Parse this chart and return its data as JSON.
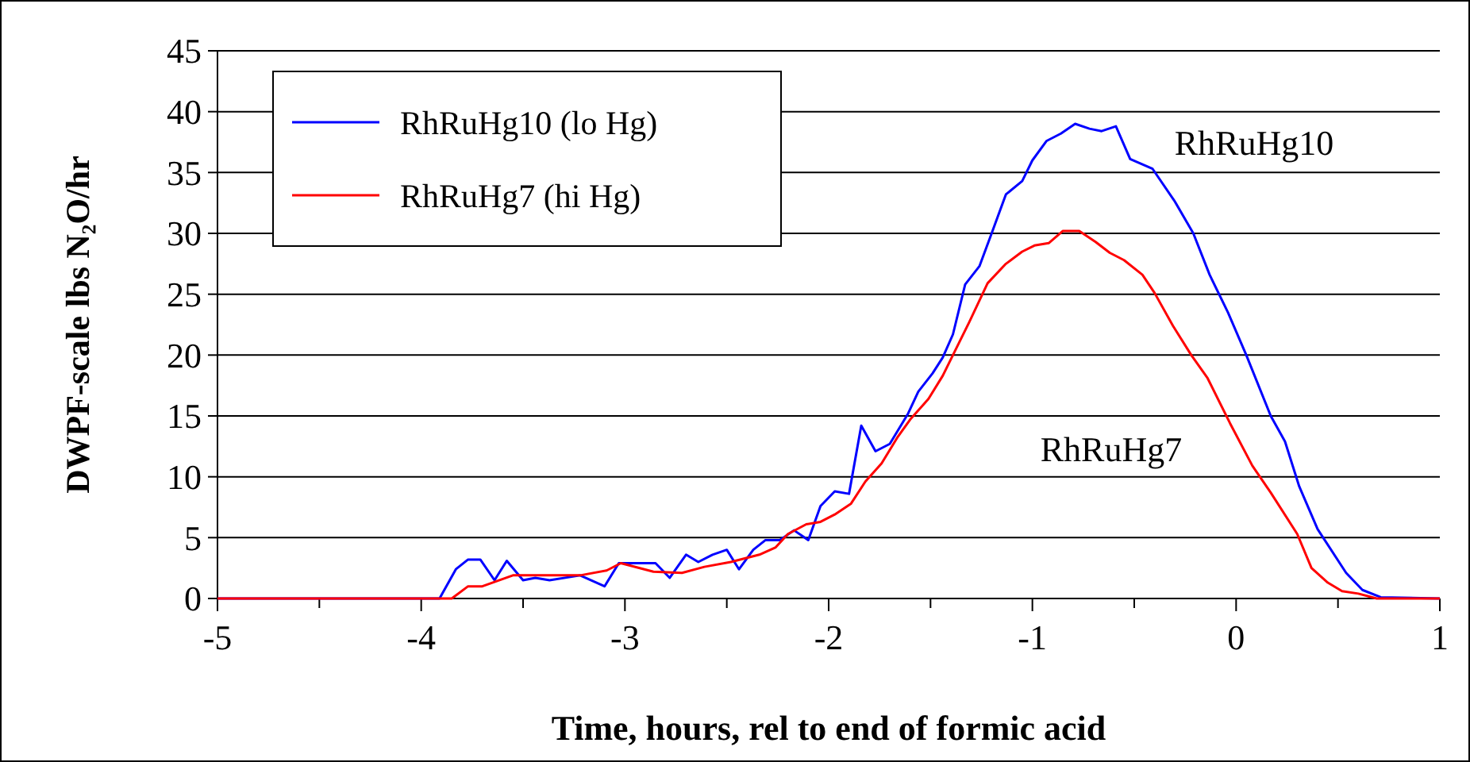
{
  "chart_data": {
    "type": "line",
    "xlabel": "Time, hours, rel to end of formic acid",
    "ylabel": "DWPF-scale lbs N₂O/hr",
    "xlim": [
      -5,
      1
    ],
    "ylim": [
      0,
      45
    ],
    "xticks": [
      -5,
      {
        "value": -4.5,
        "label": null
      },
      -4,
      {
        "value": -3.5,
        "label": null
      },
      -3,
      {
        "value": -2.5,
        "label": null
      },
      -2,
      {
        "value": -1.5,
        "label": null
      },
      -1,
      {
        "value": -0.5,
        "label": null
      },
      0,
      {
        "value": 0.5,
        "label": null
      },
      1
    ],
    "yticks": [
      0,
      5,
      10,
      15,
      20,
      25,
      30,
      35,
      40,
      45
    ],
    "grid": "y",
    "legend": "top left",
    "marker": "none",
    "line_style": "solid",
    "series": [
      {
        "name": "RhRuHg10 (lo Hg)",
        "color": "#0000ff",
        "x": [
          -5,
          -3.91,
          -3.83,
          -3.77,
          -3.71,
          -3.64,
          -3.58,
          -3.5,
          -3.44,
          -3.37,
          -3.22,
          -3.1,
          -3.03,
          -2.85,
          -2.78,
          -2.7,
          -2.64,
          -2.57,
          -2.5,
          -2.44,
          -2.37,
          -2.31,
          -2.24,
          -2.17,
          -2.1,
          -2.04,
          -1.97,
          -1.9,
          -1.84,
          -1.77,
          -1.7,
          -1.61,
          -1.56,
          -1.49,
          -1.44,
          -1.39,
          -1.33,
          -1.26,
          -1.2,
          -1.13,
          -1.05,
          -1,
          -0.93,
          -0.86,
          -0.79,
          -0.72,
          -0.66,
          -0.59,
          -0.52,
          -0.41,
          -0.3,
          -0.21,
          -0.13,
          -0.04,
          0.05,
          0.17,
          0.24,
          0.31,
          0.4,
          0.54,
          0.62,
          0.71,
          1
        ],
        "values": [
          0,
          0,
          2.4,
          3.2,
          3.2,
          1.5,
          3.1,
          1.5,
          1.7,
          1.5,
          1.9,
          1,
          2.9,
          2.9,
          1.7,
          3.6,
          3,
          3.6,
          4,
          2.4,
          4,
          4.8,
          4.8,
          5.6,
          4.8,
          7.6,
          8.8,
          8.6,
          14.2,
          12.1,
          12.7,
          15.2,
          17,
          18.5,
          19.8,
          21.7,
          25.8,
          27.3,
          30,
          33.2,
          34.3,
          36,
          37.6,
          38.2,
          39,
          38.6,
          38.4,
          38.8,
          36.1,
          35.3,
          32.6,
          30,
          26.6,
          23.5,
          20,
          15,
          12.9,
          9.2,
          5.7,
          2.1,
          0.7,
          0.1,
          0
        ]
      },
      {
        "name": "RhRuHg7 (hi Hg)",
        "color": "#ff0000",
        "x": [
          -5,
          -3.85,
          -3.77,
          -3.7,
          -3.55,
          -3.22,
          -3.09,
          -3.02,
          -2.86,
          -2.72,
          -2.61,
          -2.48,
          -2.34,
          -2.26,
          -2.2,
          -2.11,
          -2.04,
          -1.97,
          -1.89,
          -1.82,
          -1.74,
          -1.66,
          -1.6,
          -1.51,
          -1.44,
          -1.39,
          -1.31,
          -1.22,
          -1.13,
          -1.05,
          -0.99,
          -0.92,
          -0.85,
          -0.77,
          -0.69,
          -0.62,
          -0.55,
          -0.46,
          -0.4,
          -0.31,
          -0.22,
          -0.14,
          -0.03,
          0.08,
          0.17,
          0.3,
          0.37,
          0.45,
          0.52,
          0.6,
          0.69,
          1
        ],
        "values": [
          0,
          0,
          1,
          1,
          1.9,
          1.9,
          2.3,
          2.9,
          2.2,
          2.1,
          2.6,
          3,
          3.6,
          4.2,
          5.3,
          6.1,
          6.3,
          6.9,
          7.8,
          9.6,
          11.1,
          13.3,
          14.7,
          16.4,
          18.3,
          20,
          22.7,
          25.9,
          27.5,
          28.5,
          29,
          29.2,
          30.2,
          30.2,
          29.3,
          28.4,
          27.8,
          26.6,
          25.1,
          22.4,
          20,
          18.1,
          14.4,
          10.9,
          8.7,
          5.3,
          2.5,
          1.3,
          0.6,
          0.4,
          0,
          0
        ]
      }
    ],
    "annotations": [
      "RhRuHg10",
      "RhRuHg7"
    ]
  }
}
